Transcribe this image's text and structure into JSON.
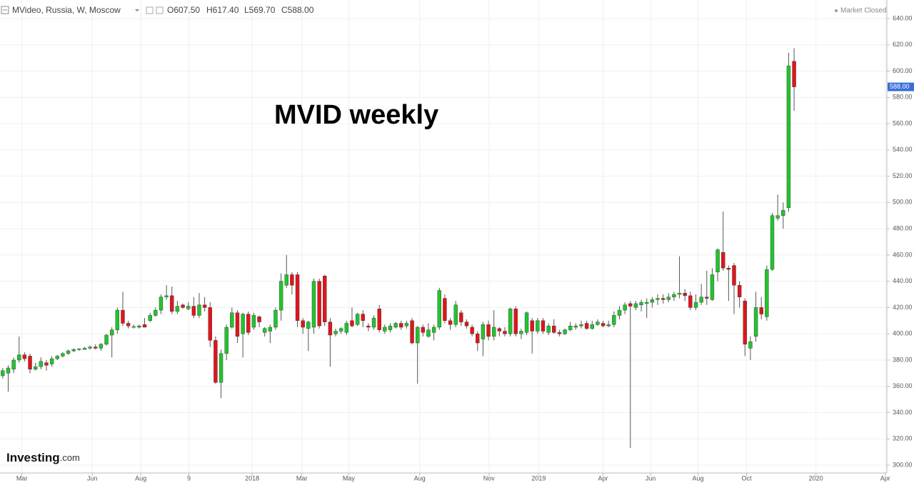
{
  "header": {
    "symbol": "MVideo, Russia, W, Moscow",
    "ohlc_text": [
      "O607.50",
      "H617.40",
      "L569.70",
      "C588.00"
    ],
    "status": "Market Closed"
  },
  "brand": {
    "name": "Investing",
    "suffix": ".com"
  },
  "chart_data": {
    "type": "candlestick",
    "title": "MVID weekly",
    "up_color": "#22c42e",
    "down_color": "#e0151c",
    "grid": true,
    "last_price": {
      "value": 588,
      "label": "588.00"
    },
    "xlim": [
      -0.5,
      162
    ],
    "xticks": [
      {
        "value": 3.5,
        "label": "Mar"
      },
      {
        "value": 16.4,
        "label": "Jun"
      },
      {
        "value": 25.3,
        "label": "Aug"
      },
      {
        "value": 34.1,
        "label": "9"
      },
      {
        "value": 45.7,
        "label": "2018"
      },
      {
        "value": 54.8,
        "label": "Mar"
      },
      {
        "value": 63.4,
        "label": "May"
      },
      {
        "value": 76.4,
        "label": "Aug"
      },
      {
        "value": 89.1,
        "label": "Nov"
      },
      {
        "value": 98.2,
        "label": "2019"
      },
      {
        "value": 110,
        "label": "Apr"
      },
      {
        "value": 118.7,
        "label": "Jun"
      },
      {
        "value": 127.4,
        "label": "Aug"
      },
      {
        "value": 136.3,
        "label": "Oct"
      },
      {
        "value": 149,
        "label": "2020"
      },
      {
        "value": 161.7,
        "label": "Apr"
      }
    ],
    "ylim": [
      300,
      640
    ],
    "yticks": [
      {
        "value": 300,
        "label": "300.00"
      },
      {
        "value": 320,
        "label": "320.00"
      },
      {
        "value": 340,
        "label": "340.00"
      },
      {
        "value": 360,
        "label": "360.00"
      },
      {
        "value": 380,
        "label": "380.00"
      },
      {
        "value": 400,
        "label": "400.00"
      },
      {
        "value": 420,
        "label": "420.00"
      },
      {
        "value": 440,
        "label": "440.00"
      },
      {
        "value": 460,
        "label": "460.00"
      },
      {
        "value": 480,
        "label": "480.00"
      },
      {
        "value": 500,
        "label": "500.00"
      },
      {
        "value": 520,
        "label": "520.00"
      },
      {
        "value": 540,
        "label": "540.00"
      },
      {
        "value": 560,
        "label": "560.00"
      },
      {
        "value": 580,
        "label": "580.00"
      },
      {
        "value": 600,
        "label": "600.00"
      },
      {
        "value": 620,
        "label": "620.00"
      },
      {
        "value": 640,
        "label": "640.00"
      }
    ],
    "open": [
      368,
      370,
      373,
      380,
      384,
      383,
      373,
      375,
      378,
      377,
      381,
      383,
      385,
      387,
      388,
      388,
      389,
      390,
      389,
      392,
      399,
      403,
      418,
      408,
      405,
      405,
      407,
      410,
      414,
      418,
      428,
      429,
      417,
      422,
      419,
      421,
      414,
      422,
      420,
      395,
      363,
      385,
      405,
      416,
      400,
      415,
      405,
      413,
      401,
      402,
      405,
      418,
      437,
      445,
      445,
      410,
      404,
      405,
      440,
      444,
      409,
      400,
      402,
      401,
      410,
      407,
      415,
      406,
      405,
      419,
      402,
      403,
      405,
      408,
      406,
      410,
      393,
      405,
      398,
      401,
      405,
      427,
      410,
      407,
      416,
      409,
      405,
      400,
      396,
      407,
      398,
      404,
      402,
      400,
      419,
      400,
      401,
      410,
      402,
      410,
      401,
      406,
      401,
      400,
      403,
      405,
      406,
      408,
      404,
      407,
      408,
      406,
      407,
      414,
      418,
      423,
      420,
      422,
      423,
      424,
      426,
      427,
      426,
      428,
      430,
      431,
      429,
      420,
      424,
      428,
      426,
      447,
      462,
      450,
      452,
      437,
      425,
      389,
      398,
      420,
      413,
      449,
      488,
      490,
      496,
      607.5
    ],
    "high": [
      374,
      376,
      382,
      398,
      386,
      385,
      378,
      382,
      380,
      383,
      384,
      386,
      388,
      389,
      389,
      390,
      391,
      392,
      393,
      400,
      405,
      420,
      432,
      410,
      407,
      407,
      412,
      416,
      420,
      430,
      437,
      436,
      425,
      423,
      424,
      428,
      431,
      428,
      424,
      398,
      388,
      407,
      420,
      418,
      416,
      417,
      416,
      414,
      405,
      407,
      420,
      446,
      460,
      447,
      447,
      412,
      410,
      442,
      442,
      445,
      412,
      404,
      405,
      410,
      420,
      416,
      418,
      408,
      414,
      422,
      407,
      408,
      409,
      410,
      410,
      412,
      406,
      407,
      408,
      407,
      435,
      430,
      412,
      425,
      418,
      411,
      407,
      402,
      409,
      410,
      418,
      405,
      405,
      420,
      421,
      404,
      417,
      412,
      412,
      412,
      408,
      411,
      403,
      404,
      409,
      408,
      410,
      410,
      410,
      411,
      410,
      410,
      417,
      421,
      424,
      425,
      425,
      426,
      427,
      428,
      430,
      430,
      431,
      432,
      459,
      434,
      432,
      430,
      438,
      448,
      450,
      465,
      493,
      452,
      454,
      440,
      427,
      398,
      432,
      428,
      452,
      492,
      506,
      500,
      614,
      617.4
    ],
    "low": [
      366,
      356,
      370,
      378,
      379,
      370,
      372,
      373,
      372,
      375,
      380,
      382,
      384,
      386,
      387,
      388,
      388,
      388,
      387,
      391,
      382,
      400,
      406,
      404,
      404,
      404,
      405,
      409,
      413,
      415,
      426,
      415,
      415,
      419,
      418,
      412,
      412,
      417,
      390,
      362,
      351,
      380,
      404,
      393,
      382,
      399,
      403,
      405,
      398,
      393,
      403,
      410,
      435,
      430,
      405,
      400,
      387,
      400,
      404,
      406,
      375,
      398,
      400,
      399,
      405,
      406,
      405,
      402,
      403,
      401,
      400,
      401,
      404,
      403,
      404,
      392,
      362,
      398,
      397,
      395,
      403,
      408,
      403,
      405,
      406,
      404,
      398,
      387,
      383,
      395,
      395,
      398,
      398,
      398,
      398,
      396,
      399,
      385,
      400,
      400,
      399,
      400,
      398,
      399,
      402,
      403,
      404,
      403,
      403,
      406,
      405,
      405,
      405,
      411,
      415,
      313,
      418,
      417,
      412,
      420,
      422,
      423,
      424,
      425,
      427,
      425,
      418,
      418,
      422,
      422,
      425,
      440,
      448,
      425,
      415,
      420,
      383,
      380,
      394,
      411,
      410,
      448,
      486,
      480,
      493,
      569.7
    ],
    "close": [
      372,
      374,
      380,
      384,
      381,
      373,
      375,
      379,
      376,
      381,
      383,
      385,
      387,
      388,
      388.5,
      389,
      390,
      389,
      392,
      399,
      403,
      418,
      408,
      406,
      405.5,
      406,
      405,
      414,
      418,
      428,
      429,
      417,
      421,
      420,
      421,
      414,
      422,
      420,
      395,
      363,
      385,
      405,
      416,
      398,
      415,
      401,
      414,
      409,
      404,
      405,
      418,
      440,
      445,
      437,
      410,
      405,
      409,
      440,
      406,
      409,
      399,
      402,
      404,
      408,
      406,
      415,
      410,
      405,
      412,
      403,
      405,
      406,
      408,
      405,
      408,
      393,
      405,
      401,
      403,
      405,
      433,
      410,
      407,
      422,
      409,
      406,
      400,
      393,
      407,
      398,
      405,
      402,
      400,
      419,
      400,
      402,
      416,
      402,
      410,
      402,
      406,
      401,
      400,
      403,
      406,
      406,
      407,
      404,
      407,
      409,
      406,
      407,
      414,
      418,
      422,
      421,
      423,
      424,
      424,
      426,
      427,
      426,
      428,
      430,
      431,
      429,
      420,
      424,
      428,
      427,
      445,
      464,
      450,
      449,
      437,
      428,
      392,
      394,
      420,
      415,
      449,
      490,
      490,
      494,
      604,
      588
    ]
  }
}
